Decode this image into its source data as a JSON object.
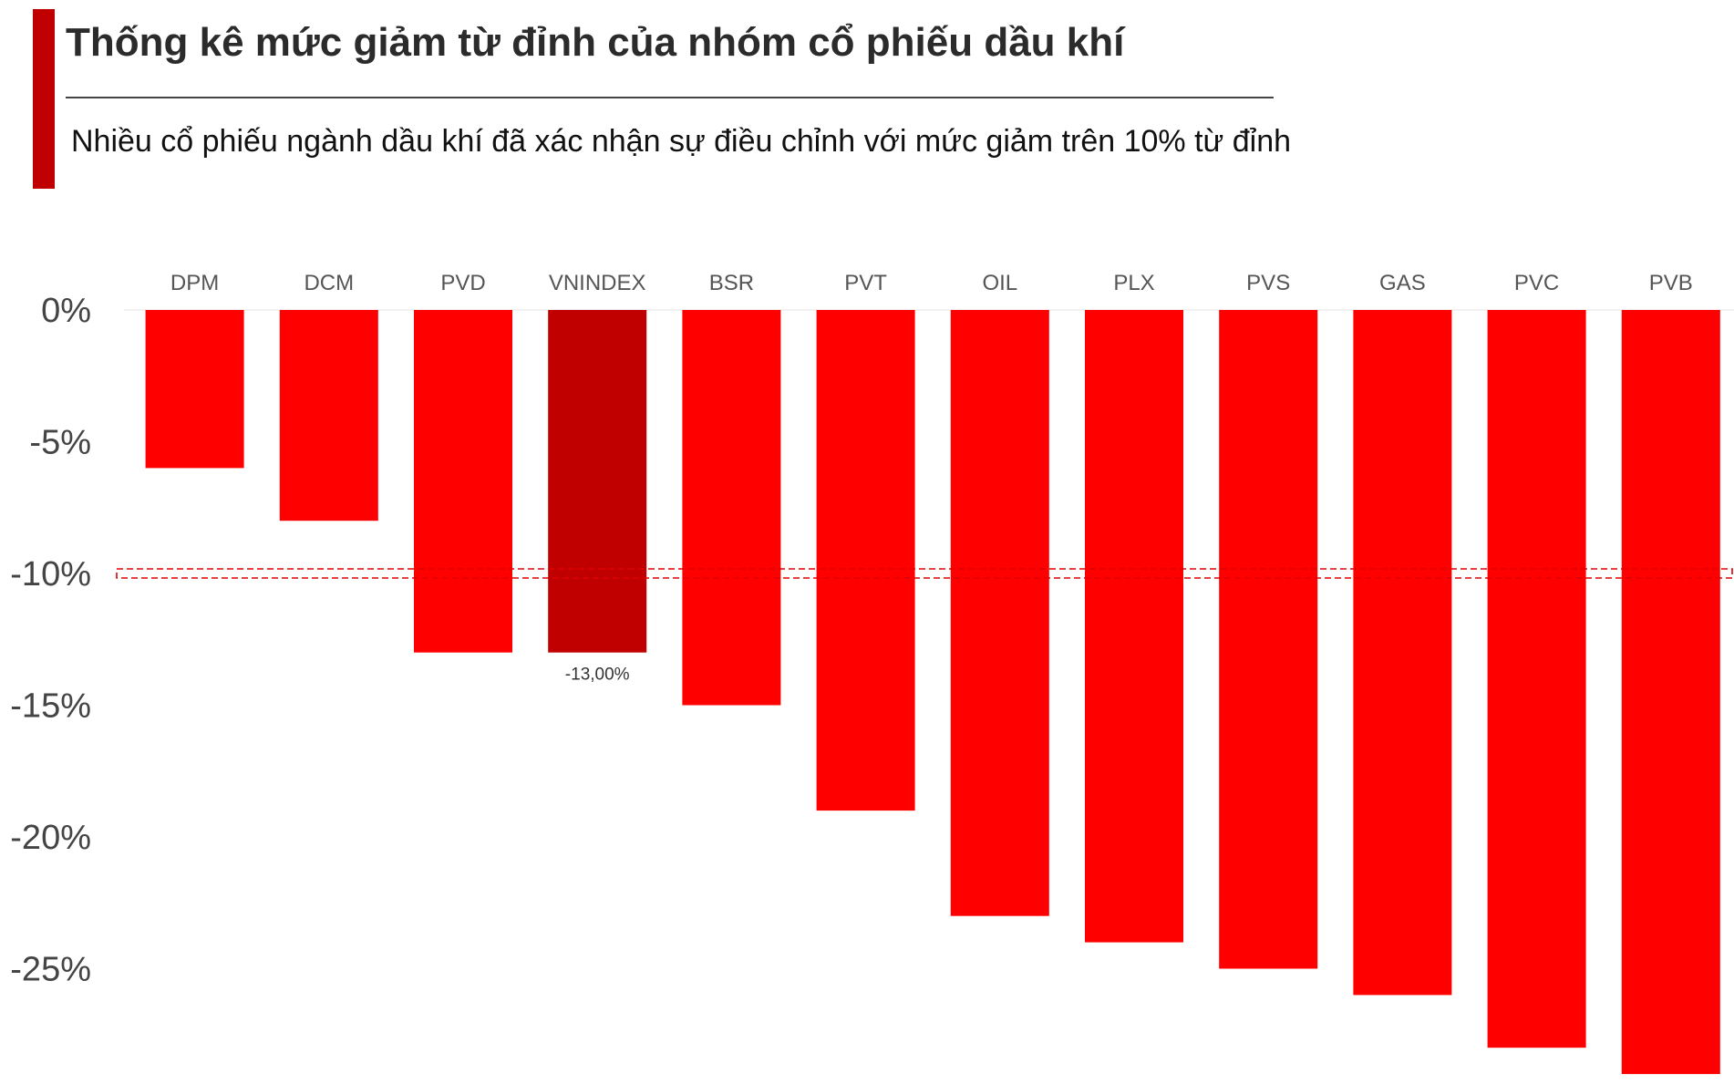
{
  "header": {
    "title": "Thống kê mức giảm từ đỉnh của nhóm cổ phiếu dầu khí",
    "subtitle": "Nhiều cổ phiếu ngành dầu khí đã xác nhận sự điều chỉnh với mức giảm trên 10% từ đỉnh"
  },
  "colors": {
    "accent": "#c00000",
    "bar": "#ff0000",
    "highlight_bar": "#c00000",
    "reference_line": "#e00000"
  },
  "chart_data": {
    "type": "bar",
    "title": "Thống kê mức giảm từ đỉnh của nhóm cổ phiếu dầu khí",
    "subtitle": "Nhiều cổ phiếu ngành dầu khí đã xác nhận sự điều chỉnh với mức giảm trên 10% từ đỉnh",
    "categories": [
      "DPM",
      "DCM",
      "PVD",
      "VNINDEX",
      "BSR",
      "PVT",
      "OIL",
      "PLX",
      "PVS",
      "GAS",
      "PVC",
      "PVB"
    ],
    "values": [
      -6,
      -8,
      -13,
      -13,
      -15,
      -19,
      -23,
      -24,
      -25,
      -26,
      -28,
      -29
    ],
    "highlight": "VNINDEX",
    "data_labels": [
      {
        "category": "VNINDEX",
        "text": "-13,00%"
      }
    ],
    "reference_line": {
      "y": -10,
      "style": "dashed"
    },
    "y_ticks": [
      0,
      -5,
      -10,
      -15,
      -20,
      -25
    ],
    "y_tick_labels": [
      "0%",
      "-5%",
      "-10%",
      "-15%",
      "-20%",
      "-25%"
    ],
    "ylim": [
      -29,
      0
    ],
    "category_labels_position": "top",
    "xlabel": "",
    "ylabel": "",
    "grid": false,
    "legend": "none"
  }
}
